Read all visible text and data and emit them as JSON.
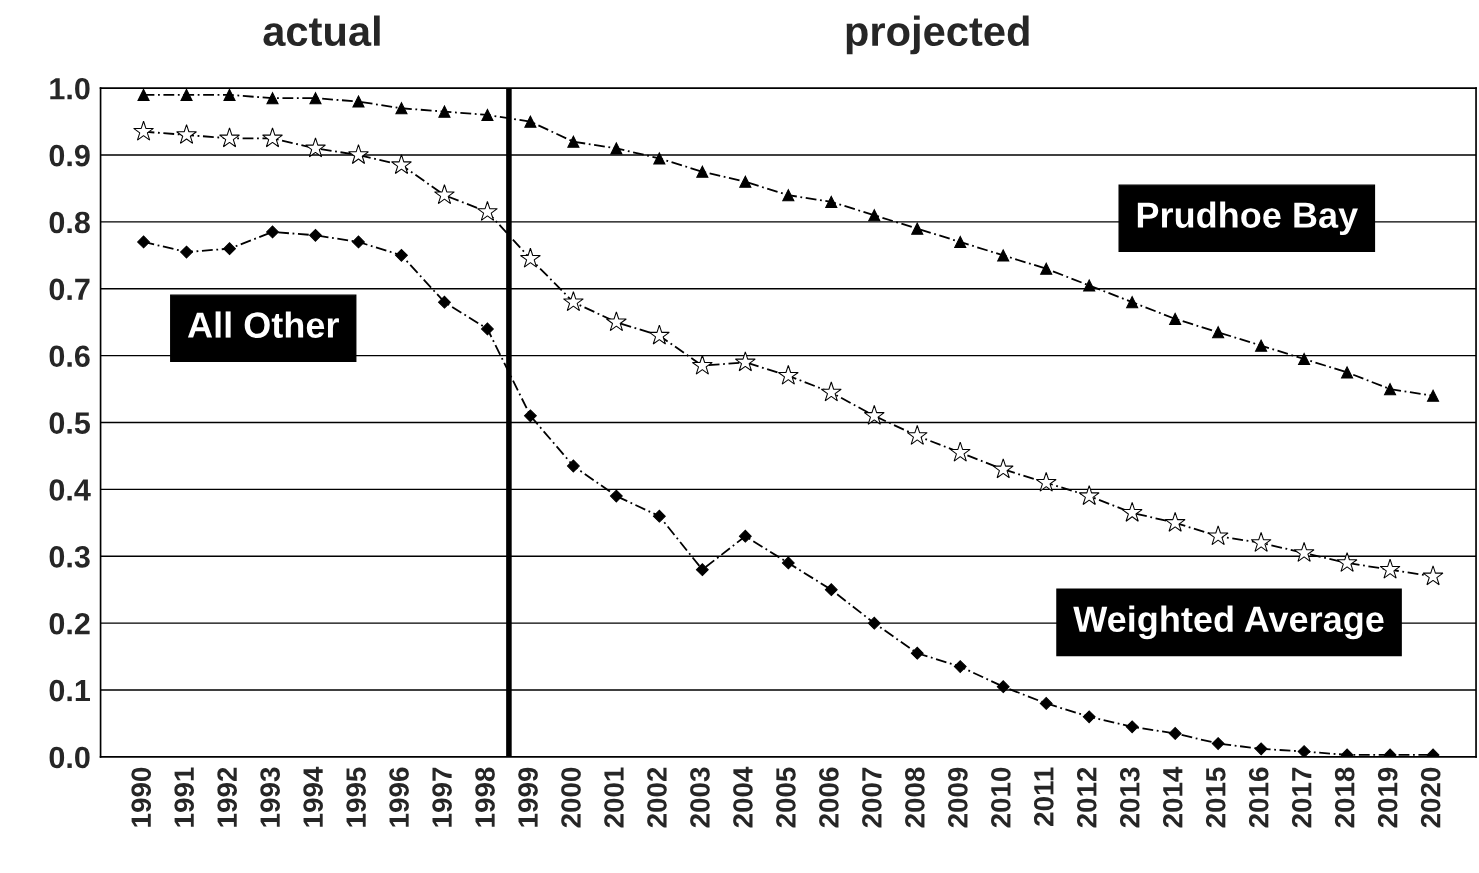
{
  "chart_data": {
    "type": "line",
    "annotations": [
      "actual",
      "projected"
    ],
    "x": [
      1990,
      1991,
      1992,
      1993,
      1994,
      1995,
      1996,
      1997,
      1998,
      1999,
      2000,
      2001,
      2002,
      2003,
      2004,
      2005,
      2006,
      2007,
      2008,
      2009,
      2010,
      2011,
      2012,
      2013,
      2014,
      2015,
      2016,
      2017,
      2018,
      2019,
      2020
    ],
    "xlim": [
      1989,
      2021
    ],
    "xticks": [
      1990,
      1991,
      1992,
      1993,
      1994,
      1995,
      1996,
      1997,
      1998,
      1999,
      2000,
      2001,
      2002,
      2003,
      2004,
      2005,
      2006,
      2007,
      2008,
      2009,
      2010,
      2011,
      2012,
      2013,
      2014,
      2015,
      2016,
      2017,
      2018,
      2019,
      2020
    ],
    "ylim": [
      0,
      1.0
    ],
    "yticks": [
      {
        "value": 0,
        "label": "0.0"
      },
      0.1,
      0.2,
      0.3,
      0.4,
      0.5,
      0.6,
      0.7,
      0.8,
      0.9,
      {
        "value": 1.0,
        "label": "1.0"
      }
    ],
    "grid": "y",
    "ref_lines": [
      {
        "axis": "x",
        "value": 1998.5,
        "color": "#000000",
        "line_style": "solid"
      }
    ],
    "series": [
      {
        "name": "Prudhoe Bay",
        "color": "#000000",
        "marker": "triangle",
        "line_style": "dashed",
        "values": [
          0.99,
          0.99,
          0.99,
          0.985,
          0.985,
          0.98,
          0.97,
          0.965,
          0.96,
          0.95,
          0.92,
          0.91,
          0.895,
          0.875,
          0.86,
          0.84,
          0.83,
          0.81,
          0.79,
          0.77,
          0.75,
          0.73,
          0.705,
          0.68,
          0.655,
          0.635,
          0.615,
          0.595,
          0.575,
          0.55,
          0.54
        ]
      },
      {
        "name": "All Other",
        "color": "#000000",
        "marker": "diamond",
        "line_style": "dashed",
        "values": [
          0.77,
          0.755,
          0.76,
          0.785,
          0.78,
          0.77,
          0.75,
          0.68,
          0.64,
          0.51,
          0.435,
          0.39,
          0.36,
          0.28,
          0.33,
          0.29,
          0.25,
          0.2,
          0.155,
          0.135,
          0.105,
          0.08,
          0.06,
          0.045,
          0.035,
          0.02,
          0.012,
          0.008,
          0.003,
          0.003,
          0.003
        ]
      },
      {
        "name": "Weighted Average",
        "color": "#000000",
        "marker": "star",
        "line_style": "dashed",
        "values": [
          0.935,
          0.93,
          0.925,
          0.925,
          0.91,
          0.9,
          0.885,
          0.84,
          0.815,
          0.745,
          0.68,
          0.65,
          0.63,
          0.585,
          0.59,
          0.57,
          0.545,
          0.51,
          0.48,
          0.455,
          0.43,
          0.41,
          0.39,
          0.365,
          0.35,
          0.33,
          0.32,
          0.305,
          0.29,
          0.28,
          0.27
        ]
      }
    ]
  }
}
